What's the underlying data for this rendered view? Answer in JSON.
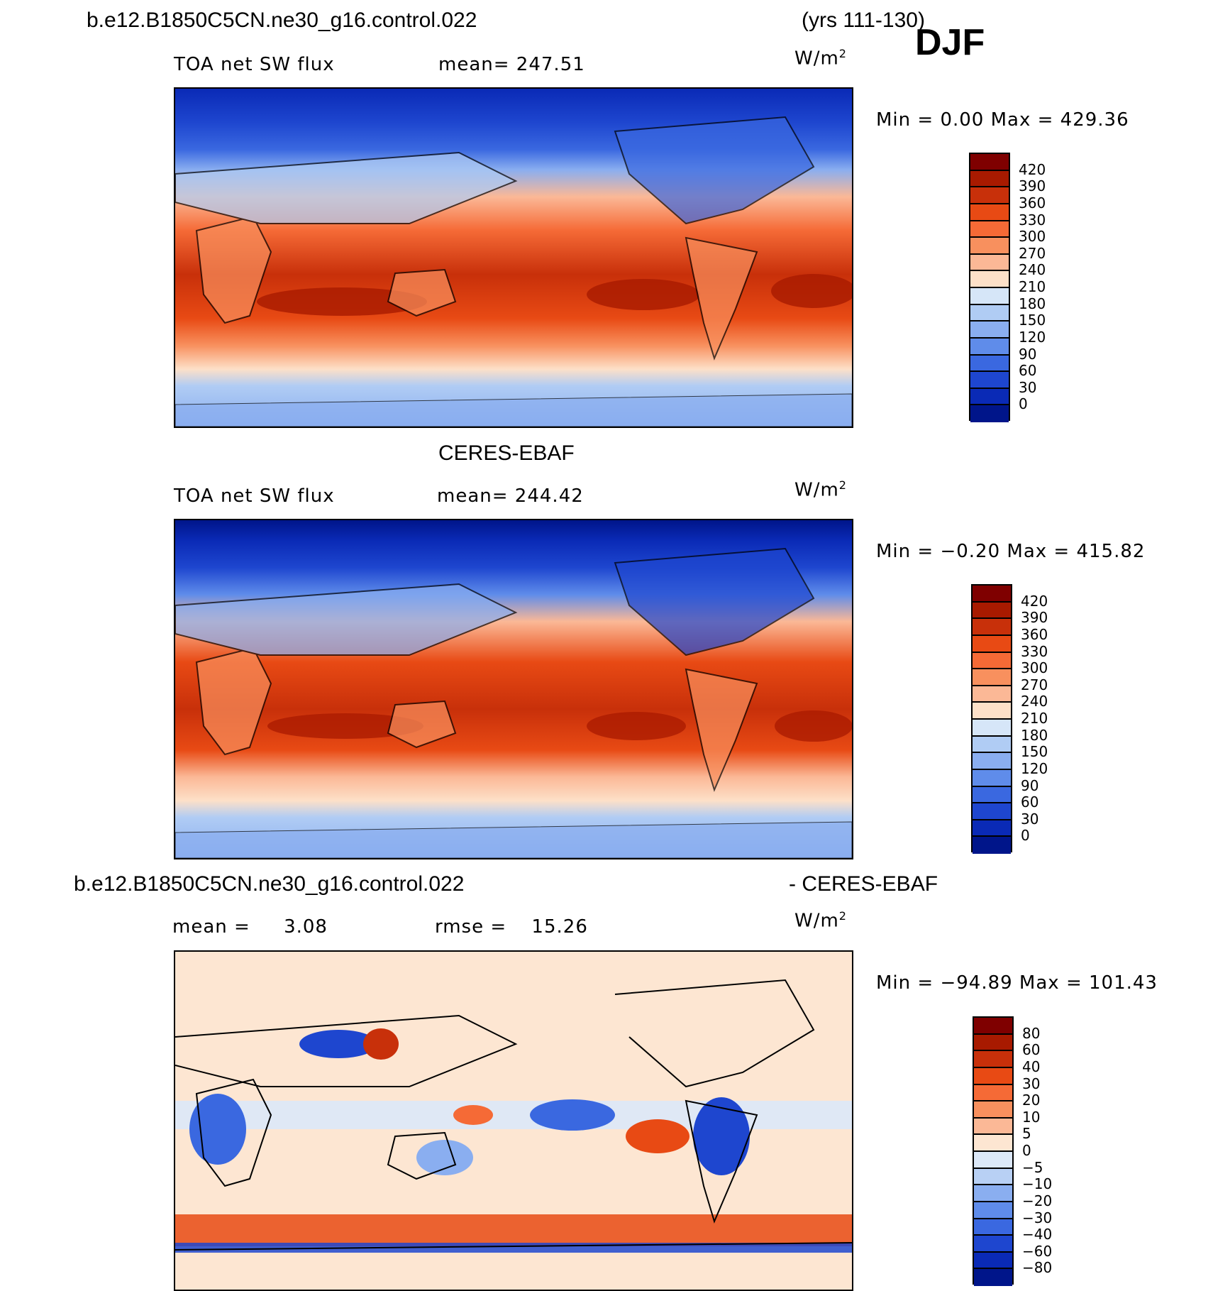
{
  "header": {
    "case_name": "b.e12.B1850C5CN.ne30_g16.control.022",
    "years": "(yrs 111-130)",
    "season": "DJF"
  },
  "chart_data": [
    {
      "type": "heatmap",
      "title": "b.e12.B1850C5CN.ne30_g16.control.022",
      "variable": "TOA net SW flux",
      "mean_label": "mean=",
      "mean": "247.51",
      "units": "W/m",
      "units_exp": "2",
      "stats": "Min =    0.00 Max = 429.36",
      "min": 0.0,
      "max": 429.36,
      "levels": [
        "420",
        "390",
        "360",
        "330",
        "300",
        "270",
        "240",
        "210",
        "180",
        "150",
        "120",
        "90",
        "60",
        "30",
        "0"
      ],
      "colors": [
        "#7f0000",
        "#a81a00",
        "#c8300a",
        "#e84a14",
        "#f56a36",
        "#f8905e",
        "#fbb896",
        "#fde0c8",
        "#d6e6f8",
        "#b0ccf4",
        "#8aaef0",
        "#5f8cea",
        "#3a68e0",
        "#1e46cf",
        "#0a2ab6",
        "#00158a"
      ]
    },
    {
      "type": "heatmap",
      "title": "CERES-EBAF",
      "variable": "TOA net SW flux",
      "mean_label": "mean=",
      "mean": "244.42",
      "units": "W/m",
      "units_exp": "2",
      "stats": "Min =  −0.20 Max = 415.82",
      "min": -0.2,
      "max": 415.82,
      "levels": [
        "420",
        "390",
        "360",
        "330",
        "300",
        "270",
        "240",
        "210",
        "180",
        "150",
        "120",
        "90",
        "60",
        "30",
        "0"
      ],
      "colors": [
        "#7f0000",
        "#a81a00",
        "#c8300a",
        "#e84a14",
        "#f56a36",
        "#f8905e",
        "#fbb896",
        "#fde0c8",
        "#d6e6f8",
        "#b0ccf4",
        "#8aaef0",
        "#5f8cea",
        "#3a68e0",
        "#1e46cf",
        "#0a2ab6",
        "#00158a"
      ]
    },
    {
      "type": "heatmap",
      "title": "b.e12.B1850C5CN.ne30_g16.control.022",
      "title_suffix": "- CERES-EBAF",
      "mean_label": "mean =",
      "mean": "3.08",
      "rmse_label": "rmse =",
      "rmse": "15.26",
      "units": "W/m",
      "units_exp": "2",
      "stats": "Min = −94.89 Max = 101.43",
      "min": -94.89,
      "max": 101.43,
      "levels": [
        "80",
        "60",
        "40",
        "30",
        "20",
        "10",
        "5",
        "0",
        "−5",
        "−10",
        "−20",
        "−30",
        "−40",
        "−60",
        "−80"
      ],
      "colors": [
        "#7f0000",
        "#a81a00",
        "#c8300a",
        "#e84a14",
        "#f56a36",
        "#f8905e",
        "#fbb896",
        "#fde6d2",
        "#dce8f8",
        "#b8d0f4",
        "#8aaef0",
        "#5f8cea",
        "#3a68e0",
        "#1e46cf",
        "#0a2ab6",
        "#00158a"
      ]
    }
  ]
}
